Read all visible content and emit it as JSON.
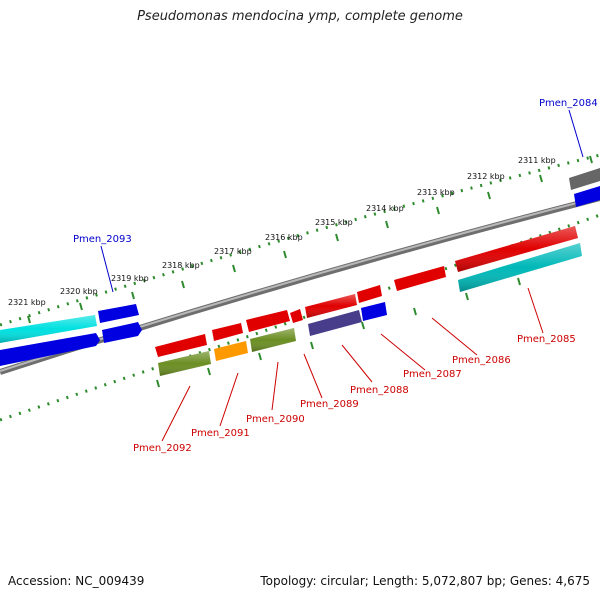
{
  "title": "Pseudomonas mendocina ymp, complete genome",
  "footer": {
    "accession": "Accession: NC_009439",
    "topology": "Topology: circular; Length: 5,072,807 bp; Genes: 4,675"
  },
  "ruler": {
    "tick_labels": [
      "2311 kbp",
      "2312 kbp",
      "2313 kbp",
      "2314 kbp",
      "2315 kbp",
      "2316 kbp",
      "2317 kbp",
      "2318 kbp",
      "2319 kbp",
      "2320 kbp",
      "2321 kbp"
    ]
  },
  "labels": {
    "Pmen_2084": "Pmen_2084",
    "Pmen_2093": "Pmen_2093",
    "Pmen_2085": "Pmen_2085",
    "Pmen_2086": "Pmen_2086",
    "Pmen_2087": "Pmen_2087",
    "Pmen_2088": "Pmen_2088",
    "Pmen_2089": "Pmen_2089",
    "Pmen_2090": "Pmen_2090",
    "Pmen_2091": "Pmen_2091",
    "Pmen_2092": "Pmen_2092"
  },
  "colors": {
    "forward_label": "#0000cc",
    "reverse_label": "#cc0000",
    "backbone": "#8a8a8a",
    "tick": "#2e8b2e",
    "red": "#e00000",
    "blue": "#0000e0",
    "cyan": "#00c8c8",
    "darkcyan": "#00b0b0",
    "olive": "#6b8e23",
    "orange": "#ff9900",
    "slate": "#483d8b",
    "gray": "#666666"
  }
}
